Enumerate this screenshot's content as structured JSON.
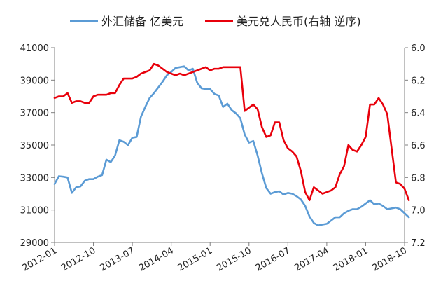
{
  "chart_data": {
    "type": "line",
    "title": "",
    "x_tick_labels": [
      "2012-01",
      "2012-10",
      "2013-07",
      "2014-04",
      "2015-01",
      "2015-10",
      "2016-07",
      "2017-04",
      "2018-01",
      "2018-10"
    ],
    "x_start": "2012-01",
    "x_end": "2018-10",
    "left_axis": {
      "min": 29000,
      "max": 41000,
      "step": 2000,
      "ticks": [
        "29000",
        "31000",
        "33000",
        "35000",
        "37000",
        "39000",
        "41000"
      ]
    },
    "right_axis": {
      "min": 6.0,
      "max": 7.2,
      "step": 0.2,
      "reversed": true,
      "ticks": [
        "6.0",
        "6.2",
        "6.4",
        "6.6",
        "6.8",
        "7.0",
        "7.2"
      ]
    },
    "legend_position": "top",
    "grid": false,
    "series": [
      {
        "name": "外汇储备 亿美元",
        "axis": "left",
        "color": "#5B9BD5",
        "values": [
          32600,
          33080,
          33050,
          33000,
          32050,
          32400,
          32450,
          32800,
          32900,
          32900,
          33050,
          33150,
          34100,
          33950,
          34350,
          35300,
          35200,
          35000,
          35450,
          35500,
          36750,
          37350,
          37900,
          38200,
          38550,
          38900,
          39300,
          39500,
          39750,
          39800,
          39850,
          39600,
          39700,
          38850,
          38500,
          38450,
          38450,
          38150,
          38050,
          37350,
          37550,
          37150,
          36950,
          36650,
          35650,
          35150,
          35250,
          34350,
          33250,
          32350,
          32000,
          32100,
          32150,
          31950,
          32050,
          32000,
          31850,
          31650,
          31250,
          30600,
          30200,
          30050,
          30100,
          30150,
          30350,
          30550,
          30550,
          30800,
          30950,
          31050,
          31050,
          31200,
          31400,
          31600,
          31350,
          31400,
          31250,
          31050,
          31100,
          31150,
          31050,
          30800,
          30550
        ]
      },
      {
        "name": "美元兑人民币(右轴 逆序)",
        "axis": "right",
        "color": "#E8000B",
        "values": [
          6.31,
          6.3,
          6.3,
          6.28,
          6.34,
          6.33,
          6.33,
          6.34,
          6.34,
          6.3,
          6.29,
          6.29,
          6.29,
          6.28,
          6.28,
          6.23,
          6.19,
          6.19,
          6.19,
          6.18,
          6.16,
          6.15,
          6.14,
          6.1,
          6.11,
          6.13,
          6.15,
          6.16,
          6.17,
          6.16,
          6.17,
          6.16,
          6.15,
          6.14,
          6.13,
          6.12,
          6.14,
          6.13,
          6.13,
          6.12,
          6.12,
          6.12,
          6.12,
          6.12,
          6.39,
          6.37,
          6.35,
          6.38,
          6.49,
          6.55,
          6.54,
          6.46,
          6.46,
          6.57,
          6.62,
          6.64,
          6.67,
          6.76,
          6.89,
          6.94,
          6.86,
          6.88,
          6.9,
          6.89,
          6.88,
          6.86,
          6.78,
          6.73,
          6.6,
          6.63,
          6.64,
          6.6,
          6.55,
          6.35,
          6.35,
          6.31,
          6.35,
          6.41,
          6.62,
          6.83,
          6.84,
          6.87,
          6.94
        ]
      }
    ]
  }
}
